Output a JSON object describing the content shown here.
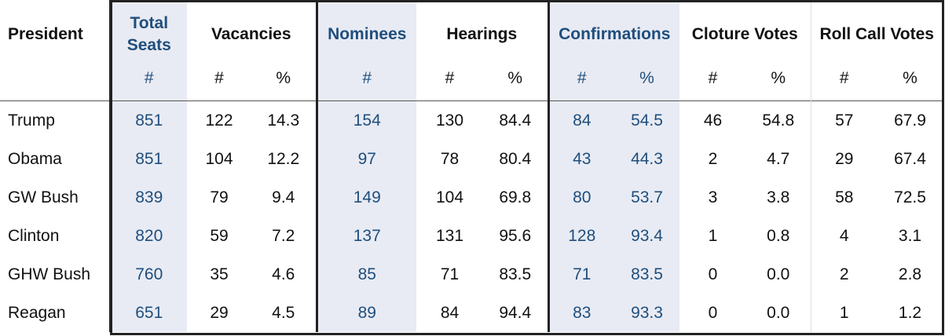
{
  "headers": {
    "president": "President",
    "total_seats": "Total Seats",
    "vacancies": "Vacancies",
    "nominees": "Nominees",
    "hearings": "Hearings",
    "confirmations": "Confirmations",
    "cloture_votes": "Cloture Votes",
    "roll_call_votes": "Roll Call Votes"
  },
  "subheaders": [
    "#",
    "#",
    "%",
    "#",
    "#",
    "%",
    "#",
    "%",
    "#",
    "%",
    "#",
    "%"
  ],
  "colors": {
    "accent": "#1f4e7d",
    "shade": "#e8ebf3"
  },
  "rows": [
    {
      "president": "Trump",
      "values": [
        "851",
        "122",
        "14.3",
        "154",
        "130",
        "84.4",
        "84",
        "54.5",
        "46",
        "54.8",
        "57",
        "67.9"
      ]
    },
    {
      "president": "Obama",
      "values": [
        "851",
        "104",
        "12.2",
        "97",
        "78",
        "80.4",
        "43",
        "44.3",
        "2",
        "4.7",
        "29",
        "67.4"
      ]
    },
    {
      "president": "GW Bush",
      "values": [
        "839",
        "79",
        "9.4",
        "149",
        "104",
        "69.8",
        "80",
        "53.7",
        "3",
        "3.8",
        "58",
        "72.5"
      ]
    },
    {
      "president": "Clinton",
      "values": [
        "820",
        "59",
        "7.2",
        "137",
        "131",
        "95.6",
        "128",
        "93.4",
        "1",
        "0.8",
        "4",
        "3.1"
      ]
    },
    {
      "president": "GHW Bush",
      "values": [
        "760",
        "35",
        "4.6",
        "85",
        "71",
        "83.5",
        "71",
        "83.5",
        "0",
        "0.0",
        "2",
        "2.8"
      ]
    },
    {
      "president": "Reagan",
      "values": [
        "651",
        "29",
        "4.5",
        "89",
        "84",
        "94.4",
        "83",
        "93.3",
        "0",
        "0.0",
        "1",
        "1.2"
      ]
    }
  ]
}
